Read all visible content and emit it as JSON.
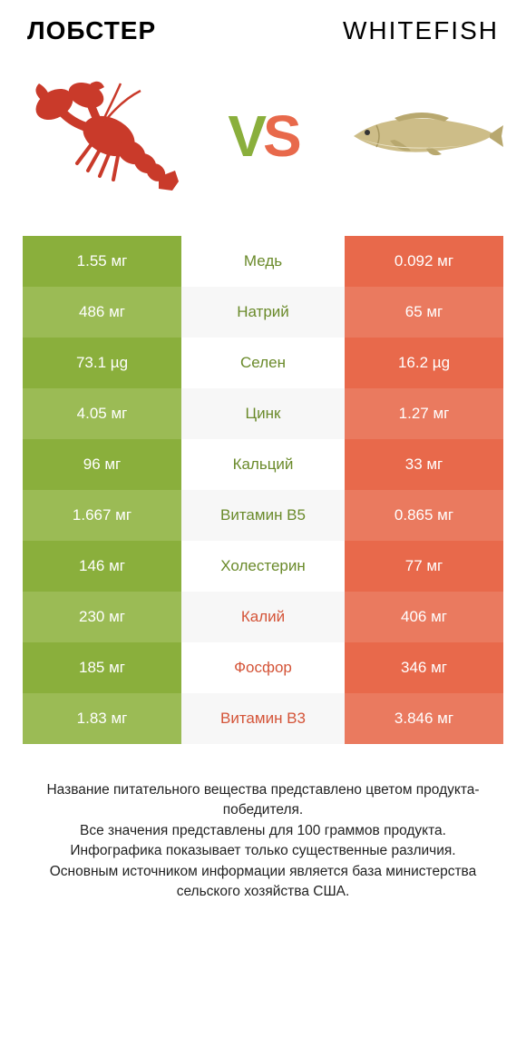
{
  "colors": {
    "green": "#8aaf3c",
    "green_alt": "#9bbb55",
    "orange": "#e8694b",
    "orange_alt": "#ea7a5f",
    "mid_green_text": "#6a8a2a",
    "mid_orange_text": "#d45438",
    "lobster": "#c93a2a",
    "fish_body": "#cdbd88",
    "fish_fin": "#b8a86f"
  },
  "header": {
    "left": "ЛОБСТЕР",
    "right": "WHITEFISH"
  },
  "vs": {
    "v": "V",
    "s": "S"
  },
  "rows": [
    {
      "left": "1.55 мг",
      "mid": "Медь",
      "right": "0.092 мг",
      "winner": "left"
    },
    {
      "left": "486 мг",
      "mid": "Натрий",
      "right": "65 мг",
      "winner": "left"
    },
    {
      "left": "73.1 µg",
      "mid": "Селен",
      "right": "16.2 µg",
      "winner": "left"
    },
    {
      "left": "4.05 мг",
      "mid": "Цинк",
      "right": "1.27 мг",
      "winner": "left"
    },
    {
      "left": "96 мг",
      "mid": "Кальций",
      "right": "33 мг",
      "winner": "left"
    },
    {
      "left": "1.667 мг",
      "mid": "Витамин B5",
      "right": "0.865 мг",
      "winner": "left"
    },
    {
      "left": "146 мг",
      "mid": "Холестерин",
      "right": "77 мг",
      "winner": "left"
    },
    {
      "left": "230 мг",
      "mid": "Калий",
      "right": "406 мг",
      "winner": "right"
    },
    {
      "left": "185 мг",
      "mid": "Фосфор",
      "right": "346 мг",
      "winner": "right"
    },
    {
      "left": "1.83 мг",
      "mid": "Витамин B3",
      "right": "3.846 мг",
      "winner": "right"
    }
  ],
  "footer": [
    "Название питательного вещества представлено цветом продукта-победителя.",
    "Все значения представлены для 100 граммов продукта.",
    "Инфографика показывает только существенные различия.",
    "Основным источником информации является база министерства сельского хозяйства США."
  ]
}
